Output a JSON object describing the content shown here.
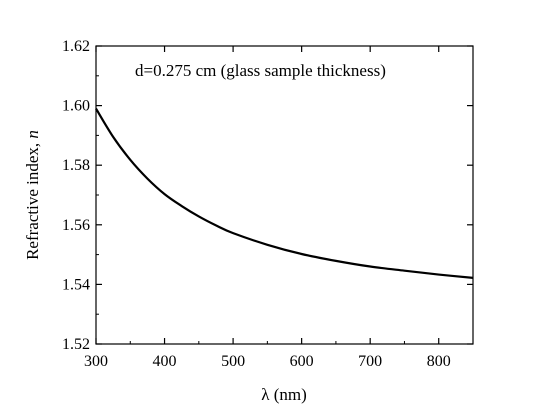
{
  "chart_data": {
    "type": "line",
    "title": "",
    "annotation": "d=0.275 cm (glass sample thickness)",
    "xlabel": "λ (nm)",
    "ylabel_main": "Refractive index, ",
    "ylabel_var": "n",
    "xlim": [
      300,
      850
    ],
    "ylim": [
      1.52,
      1.62
    ],
    "xticks": [
      300,
      400,
      500,
      600,
      700,
      800
    ],
    "yticks": [
      1.52,
      1.54,
      1.56,
      1.58,
      1.6,
      1.62
    ],
    "ytick_labels": [
      "1.52",
      "1.54",
      "1.56",
      "1.58",
      "1.60",
      "1.62"
    ],
    "xtick_labels": [
      "300",
      "400",
      "500",
      "600",
      "700",
      "800"
    ],
    "grid": false,
    "series": [
      {
        "color": "#000000",
        "x": [
          300,
          325,
          350,
          375,
          400,
          425,
          450,
          475,
          500,
          550,
          600,
          650,
          700,
          750,
          800,
          850
        ],
        "y": [
          1.599,
          1.5895,
          1.5818,
          1.5755,
          1.5703,
          1.5663,
          1.5628,
          1.5598,
          1.5572,
          1.5533,
          1.5502,
          1.5479,
          1.546,
          1.5446,
          1.5433,
          1.5422
        ]
      }
    ]
  }
}
